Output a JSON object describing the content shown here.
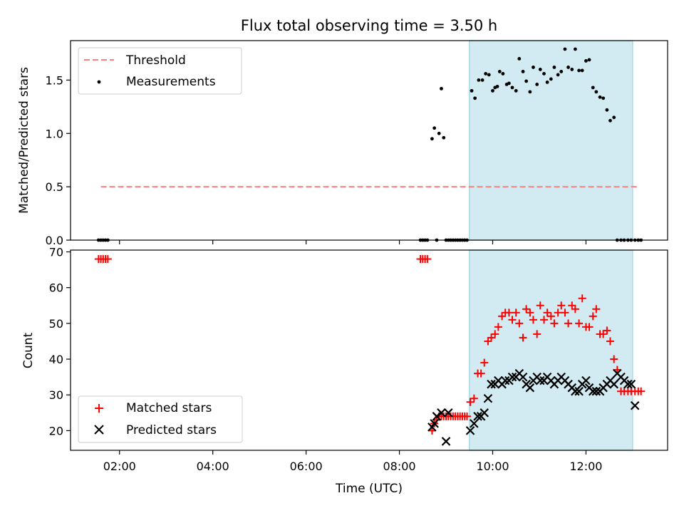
{
  "title": "Flux total observing time = 3.50 h",
  "colors": {
    "threshold": "#ff7f7f",
    "measurement": "#000000",
    "matched": "#ff0000",
    "predicted": "#000000",
    "observing_band": "#add8e6"
  },
  "chart_data": [
    {
      "type": "scatter",
      "title": "Flux total observing time = 3.50 h",
      "xlabel": "",
      "ylabel": "Matched/Predicted stars",
      "xlim": [
        0.95,
        13.75
      ],
      "ylim": [
        0.0,
        1.87
      ],
      "yticks": [
        0.0,
        0.5,
        1.0,
        1.5
      ],
      "ytick_labels": [
        "0.0",
        "0.5",
        "1.0",
        "1.5"
      ],
      "legend_position": "upper-left",
      "shaded_region": {
        "x_start": 9.5,
        "x_end": 13.0
      },
      "series": [
        {
          "name": "Threshold",
          "kind": "dashed-line",
          "x": [
            1.6,
            13.1
          ],
          "y": [
            0.5,
            0.5
          ]
        },
        {
          "name": "Measurements",
          "kind": "dots",
          "x": [
            1.55,
            1.6,
            1.65,
            1.7,
            1.75,
            8.45,
            8.5,
            8.55,
            8.6,
            8.7,
            8.75,
            8.8,
            8.85,
            8.9,
            8.95,
            9.0,
            9.05,
            9.1,
            9.15,
            9.2,
            9.25,
            9.3,
            9.35,
            9.4,
            9.45,
            9.55,
            9.62,
            9.7,
            9.78,
            9.85,
            9.92,
            10.0,
            10.05,
            10.1,
            10.15,
            10.22,
            10.3,
            10.35,
            10.42,
            10.5,
            10.57,
            10.65,
            10.72,
            10.8,
            10.87,
            10.95,
            11.02,
            11.1,
            11.17,
            11.25,
            11.32,
            11.4,
            11.47,
            11.55,
            11.62,
            11.7,
            11.77,
            11.85,
            11.92,
            12.0,
            12.07,
            12.15,
            12.22,
            12.3,
            12.37,
            12.45,
            12.52,
            12.6,
            12.67,
            12.75,
            12.82,
            12.9,
            12.97,
            13.05,
            13.12,
            13.18
          ],
          "y": [
            0,
            0,
            0,
            0,
            0,
            0,
            0,
            0,
            0,
            0.95,
            1.05,
            0,
            1.0,
            1.42,
            0.96,
            0,
            0,
            0,
            0,
            0,
            0,
            0,
            0,
            0,
            0,
            1.4,
            1.33,
            1.5,
            1.5,
            1.56,
            1.55,
            1.4,
            1.43,
            1.44,
            1.58,
            1.56,
            1.46,
            1.47,
            1.43,
            1.4,
            1.7,
            1.58,
            1.49,
            1.39,
            1.62,
            1.46,
            1.6,
            1.56,
            1.48,
            1.51,
            1.62,
            1.55,
            1.58,
            1.79,
            1.62,
            1.6,
            1.79,
            1.59,
            1.59,
            1.68,
            1.69,
            1.43,
            1.39,
            1.34,
            1.33,
            1.22,
            1.12,
            1.15,
            0,
            0,
            0,
            0,
            0,
            0,
            0,
            0
          ]
        }
      ]
    },
    {
      "type": "scatter",
      "title": "",
      "xlabel": "Time (UTC)",
      "ylabel": "Count",
      "xlim": [
        0.95,
        13.75
      ],
      "ylim": [
        14.5,
        70.5
      ],
      "yticks": [
        20,
        30,
        40,
        50,
        60,
        70
      ],
      "ytick_labels": [
        "20",
        "30",
        "40",
        "50",
        "60",
        "70"
      ],
      "xticks": [
        2,
        4,
        6,
        8,
        10,
        12
      ],
      "xtick_labels": [
        "02:00",
        "04:00",
        "06:00",
        "08:00",
        "10:00",
        "12:00"
      ],
      "legend_position": "lower-left",
      "shaded_region": {
        "x_start": 9.5,
        "x_end": 13.0
      },
      "series": [
        {
          "name": "Matched stars",
          "kind": "plus",
          "x": [
            1.55,
            1.6,
            1.65,
            1.7,
            1.75,
            8.45,
            8.5,
            8.55,
            8.6,
            8.7,
            8.75,
            8.8,
            8.85,
            8.9,
            8.95,
            9.0,
            9.05,
            9.1,
            9.15,
            9.2,
            9.25,
            9.3,
            9.35,
            9.4,
            9.45,
            9.52,
            9.6,
            9.68,
            9.75,
            9.82,
            9.9,
            9.97,
            10.05,
            10.12,
            10.2,
            10.27,
            10.35,
            10.42,
            10.5,
            10.57,
            10.65,
            10.72,
            10.8,
            10.87,
            10.95,
            11.02,
            11.1,
            11.17,
            11.25,
            11.32,
            11.4,
            11.47,
            11.55,
            11.62,
            11.7,
            11.77,
            11.85,
            11.92,
            12.0,
            12.07,
            12.15,
            12.22,
            12.3,
            12.37,
            12.45,
            12.52,
            12.6,
            12.67,
            12.75,
            12.82,
            12.9,
            12.97,
            13.05,
            13.12,
            13.18
          ],
          "y": [
            68,
            68,
            68,
            68,
            68,
            68,
            68,
            68,
            68,
            20,
            22,
            23,
            24,
            24,
            24,
            24,
            24,
            24,
            24,
            24,
            24,
            24,
            24,
            24,
            24,
            28,
            29,
            36,
            36,
            39,
            45,
            46,
            47,
            49,
            52,
            53,
            53,
            51,
            53,
            50,
            46,
            54,
            53,
            51,
            47,
            55,
            51,
            53,
            52,
            50,
            53,
            55,
            53,
            50,
            55,
            54,
            50,
            57,
            49,
            49,
            52,
            54,
            47,
            47,
            48,
            45,
            40,
            37,
            31,
            31,
            31,
            31,
            31,
            31,
            31
          ],
          "x_full": null
        },
        {
          "name": "Predicted stars",
          "kind": "x",
          "x": [
            8.7,
            8.75,
            8.8,
            8.9,
            9.0,
            9.05,
            9.52,
            9.6,
            9.68,
            9.75,
            9.82,
            9.9,
            9.97,
            10.05,
            10.12,
            10.2,
            10.27,
            10.35,
            10.42,
            10.5,
            10.57,
            10.65,
            10.72,
            10.8,
            10.87,
            10.95,
            11.02,
            11.1,
            11.17,
            11.25,
            11.32,
            11.4,
            11.47,
            11.55,
            11.62,
            11.7,
            11.77,
            11.85,
            11.92,
            12.0,
            12.07,
            12.15,
            12.22,
            12.3,
            12.37,
            12.45,
            12.52,
            12.6,
            12.67,
            12.75,
            12.82,
            12.9,
            12.97,
            13.05
          ],
          "y": [
            21,
            22,
            24,
            25,
            17,
            25,
            20,
            22,
            24,
            24,
            25,
            29,
            33,
            33,
            34,
            33,
            34,
            34,
            35,
            35,
            36,
            35,
            33,
            32,
            34,
            35,
            34,
            34,
            35,
            34,
            33,
            34,
            35,
            34,
            33,
            32,
            31,
            31,
            33,
            34,
            32,
            31,
            31,
            31,
            32,
            33,
            34,
            33,
            36,
            35,
            34,
            33,
            33,
            27
          ]
        }
      ]
    }
  ]
}
